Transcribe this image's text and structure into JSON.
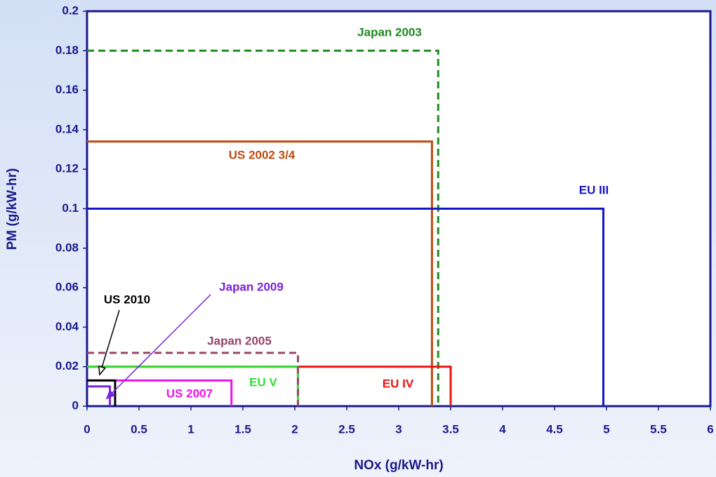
{
  "chart_data": {
    "type": "limits",
    "x_label": "NOx (g/kW-hr)",
    "y_label": "PM (g/kW-hr)",
    "xlim": [
      0,
      6
    ],
    "xticks": [
      0,
      0.5,
      1,
      1.5,
      2,
      2.5,
      3,
      3.5,
      4,
      4.5,
      5,
      5.5,
      6
    ],
    "ylim": [
      0,
      0.2
    ],
    "yticks": [
      0,
      0.02,
      0.04,
      0.06,
      0.08,
      0.1,
      0.12,
      0.14,
      0.16,
      0.18,
      0.2
    ],
    "series": [
      {
        "name": "Japan 2003",
        "color": "#1e8c1e",
        "dashed": true,
        "x": 3.38,
        "y": 0.18
      },
      {
        "name": "US 2002 3/4",
        "color": "#c04a10",
        "dashed": false,
        "x": 3.32,
        "y": 0.134
      },
      {
        "name": "EU III",
        "color": "#1414c8",
        "dashed": false,
        "x": 4.97,
        "y": 0.1
      },
      {
        "name": "EU IV",
        "color": "#ee1111",
        "dashed": false,
        "x": 3.5,
        "y": 0.02
      },
      {
        "name": "EU V",
        "color": "#33dd33",
        "dashed": false,
        "x": 2.03,
        "y": 0.02
      },
      {
        "name": "Japan 2005",
        "color": "#994466",
        "dashed": true,
        "x": 2.03,
        "y": 0.027
      },
      {
        "name": "US 2007",
        "color": "#ee11ee",
        "dashed": false,
        "x": 1.39,
        "y": 0.013
      },
      {
        "name": "US 2010",
        "color": "#000000",
        "dashed": false,
        "x": 0.27,
        "y": 0.013
      },
      {
        "name": "Japan 2009",
        "color": "#7a22dd",
        "dashed": false,
        "x": 0.22,
        "y": 0.01
      }
    ]
  }
}
